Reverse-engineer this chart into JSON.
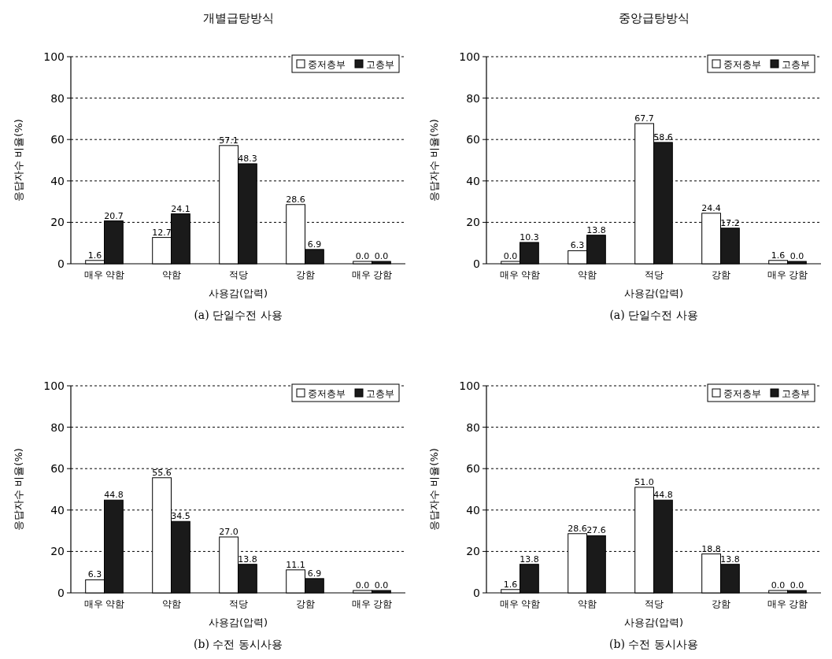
{
  "chart_data": [
    {
      "type": "bar",
      "title": "개별급탕방식",
      "xlabel": "사용감(압력)",
      "ylabel": "응답자수 비율(%)",
      "categories": [
        "매우 약함",
        "약함",
        "적당",
        "강함",
        "매우 강함"
      ],
      "series": [
        {
          "name": "중저층부",
          "color": "#ffffff",
          "values": [
            1.6,
            12.7,
            57.1,
            28.6,
            0.0
          ],
          "value_labels": [
            "1.6",
            "12.7",
            "57.1",
            "28.6",
            "0.0"
          ]
        },
        {
          "name": "고층부",
          "color": "#1a1a1a",
          "values": [
            20.7,
            24.1,
            48.3,
            6.9,
            0.0
          ],
          "value_labels": [
            "20.7",
            "24.1",
            "48.3",
            "6.9",
            "0.0"
          ]
        }
      ],
      "ylim": [
        0,
        100
      ],
      "yticks": [
        0,
        20,
        40,
        60,
        80,
        100
      ],
      "grid": "y",
      "legend": "top right",
      "annotations": [
        "(a) 단일수전 사용"
      ]
    },
    {
      "type": "bar",
      "title": "중앙급탕방식",
      "xlabel": "사용감(압력)",
      "ylabel": "응답자수 비율(%)",
      "categories": [
        "매우 약함",
        "약함",
        "적당",
        "강함",
        "매우 강함"
      ],
      "series": [
        {
          "name": "중저층부",
          "color": "#ffffff",
          "values": [
            0.0,
            6.3,
            67.7,
            24.4,
            1.6
          ],
          "value_labels": [
            "0.0",
            "6.3",
            "67.7",
            "24.4",
            "1.6"
          ]
        },
        {
          "name": "고층부",
          "color": "#1a1a1a",
          "values": [
            10.3,
            13.8,
            58.6,
            17.2,
            0.0
          ],
          "value_labels": [
            "10.3",
            "13.8",
            "58.6",
            "17.2",
            "0.0"
          ]
        }
      ],
      "ylim": [
        0,
        100
      ],
      "yticks": [
        0,
        20,
        40,
        60,
        80,
        100
      ],
      "grid": "y",
      "legend": "top right",
      "annotations": [
        "(a) 단일수전 사용"
      ]
    },
    {
      "type": "bar",
      "xlabel": "사용감(압력)",
      "ylabel": "응답자수 비율(%)",
      "categories": [
        "매우 약함",
        "약함",
        "적당",
        "강함",
        "매우 강함"
      ],
      "series": [
        {
          "name": "중저층부",
          "color": "#ffffff",
          "values": [
            6.3,
            55.6,
            27.0,
            11.1,
            0.0
          ],
          "value_labels": [
            "6.3",
            "55.6",
            "27.0",
            "11.1",
            "0.0"
          ]
        },
        {
          "name": "고층부",
          "color": "#1a1a1a",
          "values": [
            44.8,
            34.5,
            13.8,
            6.9,
            0.0
          ],
          "value_labels": [
            "44.8",
            "34.5",
            "13.8",
            "6.9",
            "0.0"
          ]
        }
      ],
      "ylim": [
        0,
        100
      ],
      "yticks": [
        0,
        20,
        40,
        60,
        80,
        100
      ],
      "grid": "y",
      "legend": "top right",
      "annotations": [
        "(b) 수전 동시사용"
      ]
    },
    {
      "type": "bar",
      "xlabel": "사용감(압력)",
      "ylabel": "응답자수 비율(%)",
      "categories": [
        "매우 약함",
        "약함",
        "적당",
        "강함",
        "매우 강함"
      ],
      "series": [
        {
          "name": "중저층부",
          "color": "#ffffff",
          "values": [
            1.6,
            28.6,
            51.0,
            18.8,
            0.0
          ],
          "value_labels": [
            "1.6",
            "28.6",
            "51.0",
            "18.8",
            "0.0"
          ]
        },
        {
          "name": "고층부",
          "color": "#1a1a1a",
          "values": [
            13.8,
            27.6,
            44.8,
            13.8,
            0.0
          ],
          "value_labels": [
            "13.8",
            "27.6",
            "44.8",
            "13.8",
            "0.0"
          ]
        }
      ],
      "ylim": [
        0,
        100
      ],
      "yticks": [
        0,
        20,
        40,
        60,
        80,
        100
      ],
      "grid": "y",
      "legend": "top right",
      "annotations": [
        "(b) 수전 동시사용"
      ]
    }
  ]
}
